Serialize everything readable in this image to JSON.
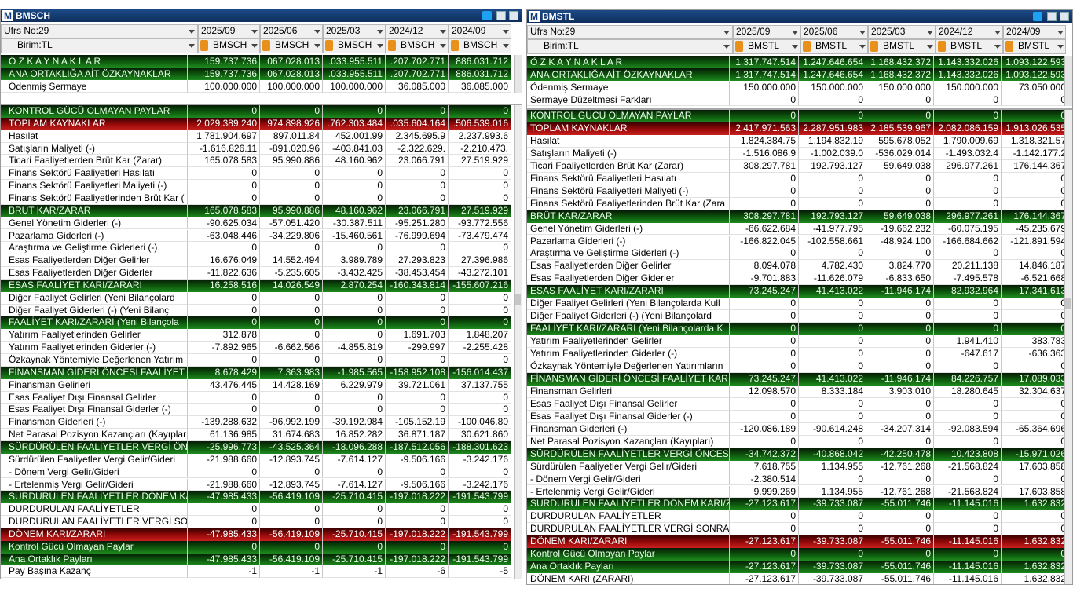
{
  "panels": [
    {
      "logo": "M",
      "title": "BMSCH",
      "header": {
        "ufrs": "Ufrs No:29",
        "birim": "Birim:TL",
        "periods": [
          "2025/09",
          "2025/06",
          "2025/03",
          "2024/12",
          "2024/09"
        ],
        "symbols": [
          "BMSCH",
          "BMSCH",
          "BMSCH",
          "BMSCH",
          "BMSCH"
        ]
      },
      "top_rows": [
        {
          "label": "Ö Z K A Y N A K L A R",
          "values": [
            ".159.737.736",
            ".067.028.013",
            ".033.955.511",
            ".207.702.771",
            "886.031.712"
          ],
          "style": "green"
        },
        {
          "label": "ANA ORTAKLIĞA AİT ÖZKAYNAKLAR",
          "values": [
            ".159.737.736",
            ".067.028.013",
            ".033.955.511",
            ".207.702.771",
            "886.031.712"
          ],
          "style": "green"
        },
        {
          "label": "Ödenmiş Sermaye",
          "values": [
            "100.000.000",
            "100.000.000",
            "100.000.000",
            "36.085.000",
            "36.085.000"
          ]
        }
      ],
      "rows": [
        {
          "label": "KONTROL GÜCÜ OLMAYAN PAYLAR",
          "values": [
            "0",
            "0",
            "0",
            "0",
            "0"
          ],
          "style": "green"
        },
        {
          "label": "TOPLAM KAYNAKLAR",
          "values": [
            "2.029.389.240",
            ".974.898.926",
            ".762.303.484",
            ".035.604.164",
            ".506.539.016"
          ],
          "style": "red"
        },
        {
          "label": "Hasılat",
          "values": [
            "1.781.904.697",
            "897.011.84",
            "452.001.99",
            "2.345.695.9",
            "2.237.993.6"
          ]
        },
        {
          "label": "Satışların Maliyeti (-)",
          "values": [
            "-1.616.826.11",
            "-891.020.96",
            "-403.841.03",
            "-2.322.629.",
            "-2.210.473."
          ]
        },
        {
          "label": "Ticari Faaliyetlerden Brüt Kar (Zarar)",
          "values": [
            "165.078.583",
            "95.990.886",
            "48.160.962",
            "23.066.791",
            "27.519.929"
          ]
        },
        {
          "label": "Finans Sektörü Faaliyetleri Hasılatı",
          "values": [
            "0",
            "0",
            "0",
            "0",
            "0"
          ]
        },
        {
          "label": "Finans Sektörü Faaliyetleri Maliyeti  (-)",
          "values": [
            "0",
            "0",
            "0",
            "0",
            "0"
          ]
        },
        {
          "label": "Finans Sektörü Faaliyetlerinden Brüt Kar (",
          "values": [
            "0",
            "0",
            "0",
            "0",
            "0"
          ]
        },
        {
          "label": "BRÜT KAR/ZARAR",
          "values": [
            "165.078.583",
            "95.990.886",
            "48.160.962",
            "23.066.791",
            "27.519.929"
          ],
          "style": "green"
        },
        {
          "label": "Genel Yönetim Giderleri (-)",
          "values": [
            "-90.625.034",
            "-57.051.420",
            "-30.387.511",
            "-95.251.280",
            "-93.772.556"
          ]
        },
        {
          "label": "Pazarlama Giderleri (-)",
          "values": [
            "-63.048.446",
            "-34.229.806",
            "-15.460.561",
            "-76.999.694",
            "-73.479.474"
          ]
        },
        {
          "label": "Araştırma ve Geliştirme Giderleri (-)",
          "values": [
            "0",
            "0",
            "0",
            "0",
            "0"
          ]
        },
        {
          "label": "Esas Faaliyetlerden Diğer Gelirler",
          "values": [
            "16.676.049",
            "14.552.494",
            "3.989.789",
            "27.293.823",
            "27.396.986"
          ]
        },
        {
          "label": "Esas Faaliyetlerden Diğer Giderler",
          "values": [
            "-11.822.636",
            "-5.235.605",
            "-3.432.425",
            "-38.453.454",
            "-43.272.101"
          ]
        },
        {
          "label": "ESAS FAALİYET KARI/ZARARI",
          "values": [
            "16.258.516",
            "14.026.549",
            "2.870.254",
            "-160.343.814",
            "-155.607.216"
          ],
          "style": "green"
        },
        {
          "label": "Diğer Faaliyet Gelirleri    (Yeni Bilançolard",
          "values": [
            "0",
            "0",
            "0",
            "0",
            "0"
          ]
        },
        {
          "label": "Diğer Faaliyet Giderleri (-)    (Yeni Bilanç",
          "values": [
            "0",
            "0",
            "0",
            "0",
            "0"
          ]
        },
        {
          "label": "FAALİYET KARI/ZARARI     (Yeni Bilançola",
          "values": [
            "0",
            "0",
            "0",
            "0",
            "0"
          ],
          "style": "green"
        },
        {
          "label": "Yatırım Faaliyetlerinden Gelirler",
          "values": [
            "312.878",
            "0",
            "0",
            "1.691.703",
            "1.848.207"
          ]
        },
        {
          "label": "Yatırım Faaliyetlerinden Giderler (-)",
          "values": [
            "-7.892.965",
            "-6.662.566",
            "-4.855.819",
            "-299.997",
            "-2.255.428"
          ]
        },
        {
          "label": "Özkaynak Yöntemiyle Değerlenen Yatırım",
          "values": [
            "0",
            "0",
            "0",
            "0",
            "0"
          ]
        },
        {
          "label": "FİNANSMAN GİDERİ ÖNCESİ FAALİYET KA",
          "values": [
            "8.678.429",
            "7.363.983",
            "-1.985.565",
            "-158.952.108",
            "-156.014.437"
          ],
          "style": "green"
        },
        {
          "label": "Finansman Gelirleri",
          "values": [
            "43.476.445",
            "14.428.169",
            "6.229.979",
            "39.721.061",
            "37.137.755"
          ]
        },
        {
          "label": "Esas Faaliyet Dışı Finansal Gelirler",
          "values": [
            "0",
            "0",
            "0",
            "0",
            "0"
          ]
        },
        {
          "label": "Esas Faaliyet Dışı Finansal Giderler (-)",
          "values": [
            "0",
            "0",
            "0",
            "0",
            "0"
          ]
        },
        {
          "label": "Finansman Giderleri (-)",
          "values": [
            "-139.288.632",
            "-96.992.199",
            "-39.192.984",
            "-105.152.19",
            "-100.046.80"
          ]
        },
        {
          "label": "Net Parasal Pozisyon Kazançları (Kayıpları)",
          "values": [
            "61.136.985",
            "31.674.683",
            "16.852.282",
            "36.871.187",
            "30.621.860"
          ]
        },
        {
          "label": "SÜRDÜRÜLEN FAALİYETLER VERGİ ÖNCE",
          "values": [
            "-25.996.773",
            "-43.525.364",
            "-18.096.288",
            "-187.512.056",
            "-188.301.623"
          ],
          "style": "green"
        },
        {
          "label": "Sürdürülen Faaliyetler Vergi Gelir/Gideri",
          "values": [
            "-21.988.660",
            "-12.893.745",
            "-7.614.127",
            "-9.506.166",
            "-3.242.176"
          ]
        },
        {
          "label": " - Dönem Vergi Gelir/Gideri",
          "values": [
            "0",
            "0",
            "0",
            "0",
            "0"
          ]
        },
        {
          "label": " - Ertelenmiş Vergi Gelir/Gideri",
          "values": [
            "-21.988.660",
            "-12.893.745",
            "-7.614.127",
            "-9.506.166",
            "-3.242.176"
          ]
        },
        {
          "label": "SÜRDÜRÜLEN FAALİYETLER DÖNEM KARI",
          "values": [
            "-47.985.433",
            "-56.419.109",
            "-25.710.415",
            "-197.018.222",
            "-191.543.799"
          ],
          "style": "green"
        },
        {
          "label": "DURDURULAN FAALİYETLER",
          "values": [
            "0",
            "0",
            "0",
            "0",
            "0"
          ]
        },
        {
          "label": "DURDURULAN FAALİYETLER VERGİ SON",
          "values": [
            "0",
            "0",
            "0",
            "0",
            "0"
          ]
        },
        {
          "label": "DÖNEM KARI/ZARARI",
          "values": [
            "-47.985.433",
            "-56.419.109",
            "-25.710.415",
            "-197.018.222",
            "-191.543.799"
          ],
          "style": "red"
        },
        {
          "label": "Kontrol Gücü Olmayan Paylar",
          "values": [
            "0",
            "0",
            "0",
            "0",
            "0"
          ],
          "style": "green"
        },
        {
          "label": "Ana Ortaklık Payları",
          "values": [
            "-47.985.433",
            "-56.419.109",
            "-25.710.415",
            "-197.018.222",
            "-191.543.799"
          ],
          "style": "green"
        },
        {
          "label": "Pay Başına Kazanç",
          "values": [
            "-1",
            "-1",
            "-1",
            "-6",
            "-5"
          ]
        }
      ]
    },
    {
      "logo": "M",
      "title": "BMSTL",
      "header": {
        "ufrs": "Ufrs No:29",
        "birim": "Birim:TL",
        "periods": [
          "2025/09",
          "2025/06",
          "2025/03",
          "2024/12",
          "2024/09"
        ],
        "symbols": [
          "BMSTL",
          "BMSTL",
          "BMSTL",
          "BMSTL",
          "BMSTL"
        ]
      },
      "top_rows": [
        {
          "label": "Ö Z K A Y N A K L A R",
          "values": [
            "1.317.747.514",
            "1.247.646.654",
            "1.168.432.372",
            "1.143.332.026",
            "1.093.122.593"
          ],
          "style": "green"
        },
        {
          "label": "ANA ORTAKLIĞA AİT ÖZKAYNAKLAR",
          "values": [
            "1.317.747.514",
            "1.247.646.654",
            "1.168.432.372",
            "1.143.332.026",
            "1.093.122.593"
          ],
          "style": "green"
        },
        {
          "label": "Ödenmiş Sermaye",
          "values": [
            "150.000.000",
            "150.000.000",
            "150.000.000",
            "150.000.000",
            "73.050.000"
          ]
        },
        {
          "label": "Sermaye Düzeltmesi Farkları",
          "values": [
            "0",
            "0",
            "0",
            "0",
            "0"
          ]
        }
      ],
      "rows": [
        {
          "label": "KONTROL GÜCÜ OLMAYAN PAYLAR",
          "values": [
            "0",
            "0",
            "0",
            "0",
            "0"
          ],
          "style": "green"
        },
        {
          "label": "TOPLAM KAYNAKLAR",
          "values": [
            "2.417.971.563",
            "2.287.951.983",
            "2.185.539.967",
            "2.082.086.159",
            "1.913.026.535"
          ],
          "style": "red"
        },
        {
          "label": "Hasılat",
          "values": [
            "1.824.384.75",
            "1.194.832.19",
            "595.678.052",
            "1.790.009.69",
            "1.318.321.57"
          ]
        },
        {
          "label": "Satışların Maliyeti (-)",
          "values": [
            "-1.516.086.9",
            "-1.002.039.0",
            "-536.029.014",
            "-1.493.032.4",
            "-1.142.177.2"
          ]
        },
        {
          "label": "Ticari Faaliyetlerden Brüt Kar (Zarar)",
          "values": [
            "308.297.781",
            "192.793.127",
            "59.649.038",
            "296.977.261",
            "176.144.367"
          ]
        },
        {
          "label": "Finans Sektörü Faaliyetleri Hasılatı",
          "values": [
            "0",
            "0",
            "0",
            "0",
            "0"
          ]
        },
        {
          "label": "Finans Sektörü Faaliyetleri Maliyeti  (-)",
          "values": [
            "0",
            "0",
            "0",
            "0",
            "0"
          ]
        },
        {
          "label": "Finans Sektörü Faaliyetlerinden Brüt Kar (Zara",
          "values": [
            "0",
            "0",
            "0",
            "0",
            "0"
          ]
        },
        {
          "label": "BRÜT KAR/ZARAR",
          "values": [
            "308.297.781",
            "192.793.127",
            "59.649.038",
            "296.977.261",
            "176.144.367"
          ],
          "style": "green"
        },
        {
          "label": "Genel Yönetim Giderleri (-)",
          "values": [
            "-66.622.684",
            "-41.977.795",
            "-19.662.232",
            "-60.075.195",
            "-45.235.679"
          ]
        },
        {
          "label": "Pazarlama Giderleri (-)",
          "values": [
            "-166.822.045",
            "-102.558.661",
            "-48.924.100",
            "-166.684.662",
            "-121.891.594"
          ]
        },
        {
          "label": "Araştırma ve Geliştirme Giderleri (-)",
          "values": [
            "0",
            "0",
            "0",
            "0",
            "0"
          ]
        },
        {
          "label": "Esas Faaliyetlerden Diğer Gelirler",
          "values": [
            "8.094.078",
            "4.782.430",
            "3.824.770",
            "20.211.138",
            "14.846.187"
          ]
        },
        {
          "label": "Esas Faaliyetlerden Diğer Giderler",
          "values": [
            "-9.701.883",
            "-11.626.079",
            "-6.833.650",
            "-7.495.578",
            "-6.521.668"
          ]
        },
        {
          "label": "ESAS FAALİYET KARI/ZARARI",
          "values": [
            "73.245.247",
            "41.413.022",
            "-11.946.174",
            "82.932.964",
            "17.341.613"
          ],
          "style": "green"
        },
        {
          "label": "Diğer Faaliyet Gelirleri    (Yeni Bilançolarda Kull",
          "values": [
            "0",
            "0",
            "0",
            "0",
            "0"
          ]
        },
        {
          "label": "Diğer Faaliyet Giderleri (-)    (Yeni Bilançolard",
          "values": [
            "0",
            "0",
            "0",
            "0",
            "0"
          ]
        },
        {
          "label": "FAALİYET KARI/ZARARI     (Yeni Bilançolarda K",
          "values": [
            "0",
            "0",
            "0",
            "0",
            "0"
          ],
          "style": "green"
        },
        {
          "label": "Yatırım Faaliyetlerinden Gelirler",
          "values": [
            "0",
            "0",
            "0",
            "1.941.410",
            "383.783"
          ]
        },
        {
          "label": "Yatırım Faaliyetlerinden Giderler (-)",
          "values": [
            "0",
            "0",
            "0",
            "-647.617",
            "-636.363"
          ]
        },
        {
          "label": "Özkaynak Yöntemiyle Değerlenen Yatırımların",
          "values": [
            "0",
            "0",
            "0",
            "0",
            "0"
          ]
        },
        {
          "label": "FİNANSMAN GİDERİ ÖNCESİ FAALİYET KARI/Z",
          "values": [
            "73.245.247",
            "41.413.022",
            "-11.946.174",
            "84.226.757",
            "17.089.033"
          ],
          "style": "green"
        },
        {
          "label": "Finansman Gelirleri",
          "values": [
            "12.098.570",
            "8.333.184",
            "3.903.010",
            "18.280.645",
            "32.304.637"
          ]
        },
        {
          "label": "Esas Faaliyet Dışı Finansal Gelirler",
          "values": [
            "0",
            "0",
            "0",
            "0",
            "0"
          ]
        },
        {
          "label": "Esas Faaliyet Dışı Finansal Giderler (-)",
          "values": [
            "0",
            "0",
            "0",
            "0",
            "0"
          ]
        },
        {
          "label": "Finansman Giderleri (-)",
          "values": [
            "-120.086.189",
            "-90.614.248",
            "-34.207.314",
            "-92.083.594",
            "-65.364.696"
          ]
        },
        {
          "label": "Net Parasal Pozisyon Kazançları (Kayıpları)",
          "values": [
            "0",
            "0",
            "0",
            "0",
            "0"
          ]
        },
        {
          "label": "SÜRDÜRÜLEN FAALİYETLER VERGİ ÖNCESİ KA",
          "values": [
            "-34.742.372",
            "-40.868.042",
            "-42.250.478",
            "10.423.808",
            "-15.971.026"
          ],
          "style": "green"
        },
        {
          "label": "Sürdürülen Faaliyetler Vergi Gelir/Gideri",
          "values": [
            "7.618.755",
            "1.134.955",
            "-12.761.268",
            "-21.568.824",
            "17.603.858"
          ]
        },
        {
          "label": " - Dönem Vergi Gelir/Gideri",
          "values": [
            "-2.380.514",
            "0",
            "0",
            "0",
            "0"
          ]
        },
        {
          "label": " - Ertelenmiş Vergi Gelir/Gideri",
          "values": [
            "9.999.269",
            "1.134.955",
            "-12.761.268",
            "-21.568.824",
            "17.603.858"
          ]
        },
        {
          "label": "SÜRDÜRÜLEN FAALİYETLER DÖNEM KARI/ZAR",
          "values": [
            "-27.123.617",
            "-39.733.087",
            "-55.011.746",
            "-11.145.016",
            "1.632.832"
          ],
          "style": "green"
        },
        {
          "label": "DURDURULAN FAALİYETLER",
          "values": [
            "0",
            "0",
            "0",
            "0",
            "0"
          ]
        },
        {
          "label": "DURDURULAN FAALİYETLER VERGİ SONRASI",
          "values": [
            "0",
            "0",
            "0",
            "0",
            "0"
          ]
        },
        {
          "label": "DÖNEM KARI/ZARARI",
          "values": [
            "-27.123.617",
            "-39.733.087",
            "-55.011.746",
            "-11.145.016",
            "1.632.832"
          ],
          "style": "red"
        },
        {
          "label": "Kontrol Gücü Olmayan Paylar",
          "values": [
            "0",
            "0",
            "0",
            "0",
            "0"
          ],
          "style": "green"
        },
        {
          "label": "Ana Ortaklık Payları",
          "values": [
            "-27.123.617",
            "-39.733.087",
            "-55.011.746",
            "-11.145.016",
            "1.632.832"
          ],
          "style": "green"
        },
        {
          "label": "DÖNEM KARI (ZARARI)",
          "values": [
            "-27.123.617",
            "-39.733.087",
            "-55.011.746",
            "-11.145.016",
            "1.632.832"
          ]
        }
      ]
    }
  ]
}
